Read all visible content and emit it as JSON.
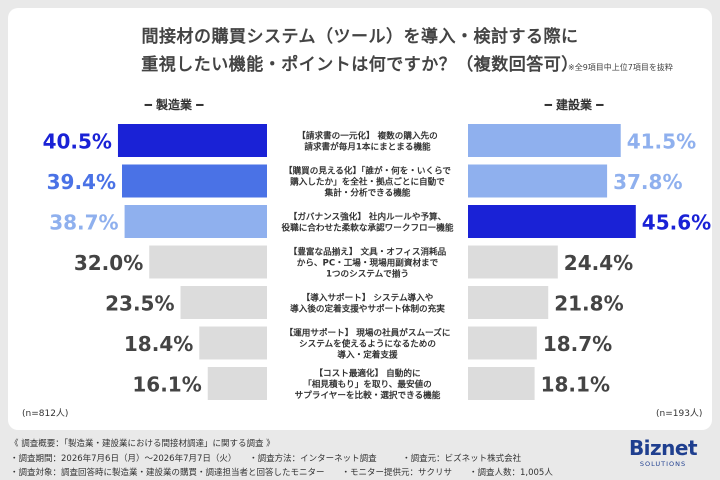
{
  "title_line1": "間接材の購買システム（ツール）を導入・検討する際に",
  "title_line2": "重視したい機能・ポイントは何ですか？（複数回答可）",
  "note": "※全9項目中上位7項目を抜粋",
  "colors": {
    "dark_blue": "#1a22d6",
    "mid_blue": "#4a72e6",
    "light_blue": "#8fb0ee",
    "gray": "#dcdcdc"
  },
  "chart_data": {
    "type": "bar",
    "orientation": "horizontal-butterfly",
    "categories": [
      [
        "【請求書の一元化】 複数の購入先の",
        "請求書が毎月1本にまとまる機能"
      ],
      [
        "【購買の見える化】「誰が・何を・いくらで",
        "購入したか」を全社・拠点ごとに自動で",
        "集計・分析できる機能"
      ],
      [
        "【ガバナンス強化】 社内ルールや予算、",
        "役職に合わせた柔軟な承認ワークフロー機能"
      ],
      [
        "【豊富な品揃え】 文具・オフィス消耗品",
        "から、PC・工場・現場用副資材まで",
        "1つのシステムで揃う"
      ],
      [
        "【導入サポート】 システム導入や",
        "導入後の定着支援やサポート体制の充実"
      ],
      [
        "【運用サポート】 現場の社員がスムーズに",
        "システムを使えるようになるための",
        "導入・定着支援"
      ],
      [
        "【コスト最適化】 自動的に",
        "「相見積もり」を取り、最安値の",
        "サプライヤーを比較・選択できる機能"
      ]
    ],
    "series": [
      {
        "name": "製造業",
        "values": [
          40.5,
          39.4,
          38.7,
          32.0,
          23.5,
          18.4,
          16.1
        ],
        "labels": [
          "40.5%",
          "39.4%",
          "38.7%",
          "32.0%",
          "23.5%",
          "18.4%",
          "16.1%"
        ],
        "bar_colors": [
          "dark_blue",
          "mid_blue",
          "light_blue",
          "gray",
          "gray",
          "gray",
          "gray"
        ],
        "n": "(n=812人)"
      },
      {
        "name": "建設業",
        "values": [
          41.5,
          37.8,
          45.6,
          24.4,
          21.8,
          18.7,
          18.1
        ],
        "labels": [
          "41.5%",
          "37.8%",
          "45.6%",
          "24.4%",
          "21.8%",
          "18.7%",
          "18.1%"
        ],
        "bar_colors": [
          "light_blue",
          "light_blue",
          "dark_blue",
          "gray",
          "gray",
          "gray",
          "gray"
        ],
        "n": "(n=193人)"
      }
    ],
    "left_label": "━ 製造業 ━",
    "right_label": "━ 建設業 ━",
    "xlim": [
      0,
      50
    ],
    "grid": false
  },
  "footer": {
    "line1": "《 調査概要：「製造業・建設業における間接材調達」に関する調査 》",
    "line2": "・調査期間：2026年7月6日（月）〜2026年7月7日（火）　　・調査方法：インターネット調査　　　・調査元：ビズネット株式会社",
    "line3": "・調査対象：調査回答時に製造業・建設業の購買・調達担当者と回答したモニター　　・モニター提供元：サクリサ　　・調査人数：1,005人"
  },
  "logo": {
    "main": "Biznet",
    "sub": "SOLUTIONS"
  }
}
